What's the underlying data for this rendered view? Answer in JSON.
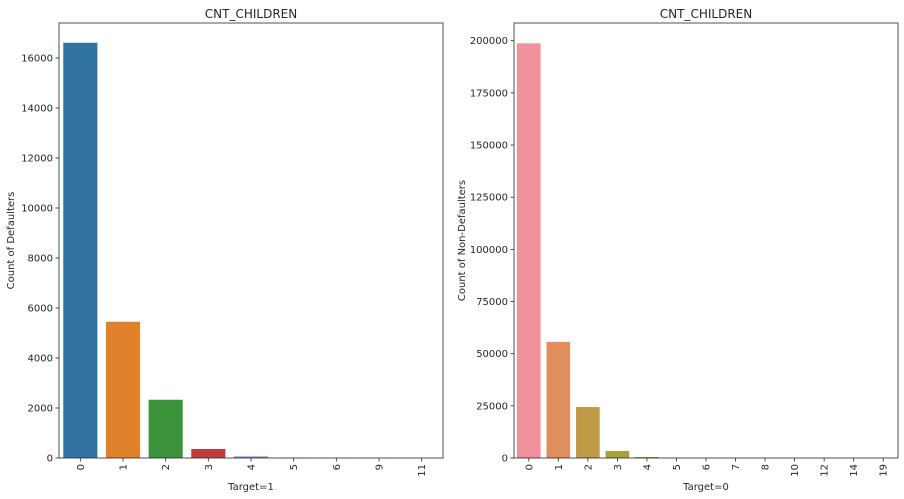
{
  "chart_data": [
    {
      "type": "bar",
      "title": "CNT_CHILDREN",
      "xlabel": "Target=1",
      "ylabel": "Count of Defaulters",
      "categories": [
        "0",
        "1",
        "2",
        "3",
        "4",
        "5",
        "6",
        "9",
        "11"
      ],
      "values": [
        16610,
        5450,
        2330,
        360,
        60,
        10,
        5,
        3,
        1
      ],
      "ylim": [
        0,
        17400
      ],
      "yticks": [
        0,
        2000,
        4000,
        6000,
        8000,
        10000,
        12000,
        14000,
        16000
      ],
      "colors": [
        "#3274a1",
        "#e1812c",
        "#3a923a",
        "#c03d3e",
        "#9372b2",
        "#845b53",
        "#d684bd",
        "#7f7f7f",
        "#a9aa35"
      ],
      "grid": false,
      "legend": "none"
    },
    {
      "type": "bar",
      "title": "CNT_CHILDREN",
      "xlabel": "Target=0",
      "ylabel": "Count of Non-Defaulters",
      "categories": [
        "0",
        "1",
        "2",
        "3",
        "4",
        "5",
        "6",
        "7",
        "8",
        "10",
        "12",
        "14",
        "19"
      ],
      "values": [
        198760,
        55660,
        24420,
        3370,
        470,
        75,
        20,
        7,
        2,
        2,
        2,
        3,
        2
      ],
      "ylim": [
        0,
        208500
      ],
      "yticks": [
        0,
        25000,
        50000,
        75000,
        100000,
        125000,
        150000,
        175000,
        200000
      ],
      "colors": [
        "#f0909d",
        "#e08e5c",
        "#bf9a47",
        "#a4a238",
        "#80a938",
        "#4daf4a",
        "#3bb07a",
        "#39ad98",
        "#3aa9ae",
        "#3ca7c6",
        "#5d9ae8",
        "#a68eeb",
        "#dd81e2"
      ],
      "grid": false,
      "legend": "none"
    }
  ]
}
